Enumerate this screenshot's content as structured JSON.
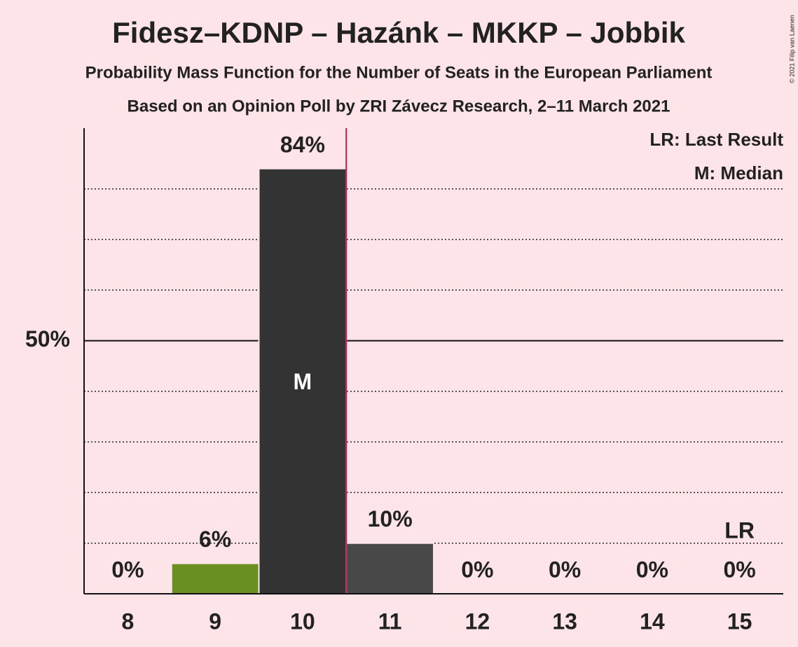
{
  "chart_data": {
    "type": "bar",
    "title": "Fidesz–KDNP – Hazánk – MKKP – Jobbik",
    "subtitle": "Probability Mass Function for the Number of Seats in the European Parliament",
    "subtitle2": "Based on an Opinion Poll by ZRI Závecz Research, 2–11 March 2021",
    "copyright": "© 2021 Filip van Laenen",
    "categories": [
      8,
      9,
      10,
      11,
      12,
      13,
      14,
      15
    ],
    "values": [
      0,
      6,
      84,
      10,
      0,
      0,
      0,
      0
    ],
    "value_labels": [
      "0%",
      "6%",
      "84%",
      "10%",
      "0%",
      "0%",
      "0%",
      "0%"
    ],
    "colors": [
      "#333333",
      "#6b8e23",
      "#333333",
      "#484848",
      "#484848",
      "#484848",
      "#484848",
      "#484848"
    ],
    "ylim": [
      0,
      92
    ],
    "yticks": [
      {
        "value": 50,
        "label": "50%"
      }
    ],
    "minor_gridlines": [
      10,
      20,
      30,
      40,
      60,
      70,
      80
    ],
    "threshold_x": 10.5,
    "threshold_color": "#c2185b",
    "median": 10,
    "median_label": "M",
    "last_result": 15,
    "last_result_label": "LR",
    "legend": [
      "LR: Last Result",
      "M: Median"
    ]
  }
}
